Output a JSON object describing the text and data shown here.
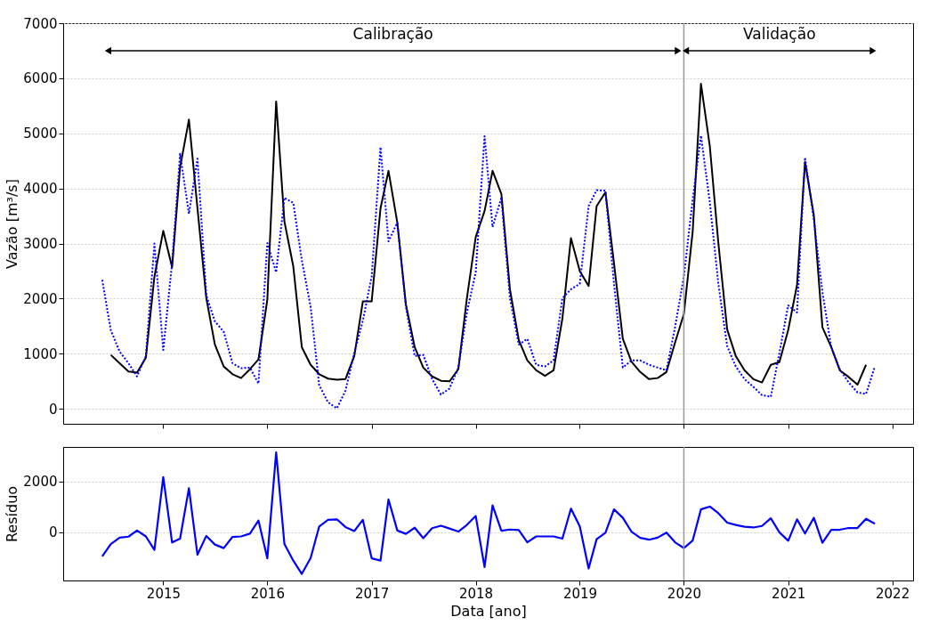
{
  "chart_data": [
    {
      "type": "line",
      "ylabel": "Vazão [m³/s]",
      "ylim": [
        -270,
        7000
      ],
      "yticks": [
        0,
        1000,
        2000,
        3000,
        4000,
        5000,
        6000,
        7000
      ],
      "xlim": [
        "2014-01-15",
        "2022-03-15"
      ],
      "xticks": [
        "2015",
        "2016",
        "2017",
        "2018",
        "2019",
        "2020",
        "2021",
        "2022"
      ],
      "tick_labels": "y",
      "grid": "y",
      "series": [
        {
          "color": "#000000",
          "line_style": "solid",
          "x": [
            "2014-07",
            "2014-08",
            "2014-09",
            "2014-10",
            "2014-11",
            "2014-12",
            "2015-01",
            "2015-02",
            "2015-03",
            "2015-04",
            "2015-05",
            "2015-06",
            "2015-07",
            "2015-08",
            "2015-09",
            "2015-10",
            "2015-11",
            "2015-12",
            "2016-01",
            "2016-02",
            "2016-03",
            "2016-04",
            "2016-05",
            "2016-06",
            "2016-07",
            "2016-08",
            "2016-09",
            "2016-10",
            "2016-11",
            "2016-12",
            "2017-01",
            "2017-02",
            "2017-03",
            "2017-04",
            "2017-05",
            "2017-06",
            "2017-07",
            "2017-08",
            "2017-09",
            "2017-10",
            "2017-11",
            "2017-12",
            "2018-01",
            "2018-02",
            "2018-03",
            "2018-04",
            "2018-05",
            "2018-06",
            "2018-07",
            "2018-08",
            "2018-09",
            "2018-10",
            "2018-11",
            "2018-12",
            "2019-01",
            "2019-02",
            "2019-03",
            "2019-04",
            "2019-05",
            "2019-06",
            "2019-07",
            "2019-08",
            "2019-09",
            "2019-10",
            "2019-11",
            "2019-12",
            "2020-01",
            "2020-02",
            "2020-03",
            "2020-04",
            "2020-05",
            "2020-06",
            "2020-07",
            "2020-08",
            "2020-09",
            "2020-10",
            "2020-11",
            "2020-12",
            "2021-01",
            "2021-02",
            "2021-03",
            "2021-04",
            "2021-05",
            "2021-06",
            "2021-07",
            "2021-08",
            "2021-09",
            "2021-10"
          ],
          "values": [
            980,
            830,
            680,
            660,
            930,
            2400,
            3230,
            2570,
            4380,
            5250,
            3640,
            2010,
            1170,
            770,
            630,
            560,
            720,
            900,
            1980,
            5580,
            3400,
            2590,
            1120,
            800,
            630,
            550,
            530,
            540,
            960,
            1950,
            1950,
            3640,
            4320,
            3380,
            1900,
            1120,
            750,
            590,
            510,
            500,
            720,
            2010,
            3120,
            3590,
            4320,
            3900,
            2170,
            1250,
            880,
            700,
            600,
            700,
            1640,
            3100,
            2500,
            2230,
            3680,
            3930,
            2640,
            1270,
            860,
            670,
            540,
            560,
            670,
            1200,
            1720,
            3220,
            5900,
            4770,
            3010,
            1440,
            960,
            700,
            540,
            480,
            800,
            850,
            1430,
            2250,
            4480,
            3510,
            1480,
            1120,
            700,
            580,
            440,
            800
          ]
        },
        {
          "color": "#0000ff",
          "line_style": "dotted",
          "x": [
            "2014-06",
            "2014-07",
            "2014-08",
            "2014-09",
            "2014-10",
            "2014-11",
            "2014-12",
            "2015-01",
            "2015-02",
            "2015-03",
            "2015-04",
            "2015-05",
            "2015-06",
            "2015-07",
            "2015-08",
            "2015-09",
            "2015-10",
            "2015-11",
            "2015-12",
            "2016-01",
            "2016-02",
            "2016-03",
            "2016-04",
            "2016-05",
            "2016-06",
            "2016-07",
            "2016-08",
            "2016-09",
            "2016-10",
            "2016-11",
            "2016-12",
            "2017-01",
            "2017-02",
            "2017-03",
            "2017-04",
            "2017-05",
            "2017-06",
            "2017-07",
            "2017-08",
            "2017-09",
            "2017-10",
            "2017-11",
            "2017-12",
            "2018-01",
            "2018-02",
            "2018-03",
            "2018-04",
            "2018-05",
            "2018-06",
            "2018-07",
            "2018-08",
            "2018-09",
            "2018-10",
            "2018-11",
            "2018-12",
            "2019-01",
            "2019-02",
            "2019-03",
            "2019-04",
            "2019-05",
            "2019-06",
            "2019-07",
            "2019-08",
            "2019-09",
            "2019-10",
            "2019-11",
            "2019-12",
            "2020-01",
            "2020-02",
            "2020-03",
            "2020-04",
            "2020-05",
            "2020-06",
            "2020-07",
            "2020-08",
            "2020-09",
            "2020-10",
            "2020-11",
            "2020-12",
            "2021-01",
            "2021-02",
            "2021-03",
            "2021-04",
            "2021-05",
            "2021-06",
            "2021-07",
            "2021-08",
            "2021-09",
            "2021-10",
            "2021-11"
          ],
          "values": [
            2340,
            1430,
            1040,
            830,
            590,
            960,
            3000,
            1070,
            2650,
            4630,
            3540,
            4540,
            2060,
            1590,
            1400,
            830,
            740,
            750,
            460,
            3010,
            2480,
            3830,
            3740,
            2700,
            1850,
            430,
            120,
            10,
            330,
            1010,
            1600,
            2400,
            4750,
            3040,
            3380,
            1850,
            960,
            980,
            540,
            260,
            370,
            750,
            1750,
            2480,
            4950,
            3300,
            3830,
            2010,
            1170,
            1270,
            800,
            770,
            880,
            2010,
            2170,
            2270,
            3680,
            3970,
            3960,
            2270,
            750,
            880,
            880,
            800,
            750,
            700,
            1480,
            2400,
            3800,
            4960,
            3750,
            2270,
            1140,
            770,
            540,
            400,
            250,
            220,
            1010,
            1880,
            1750,
            4560,
            3430,
            2120,
            1120,
            720,
            480,
            300,
            270,
            770
          ]
        }
      ],
      "ref_lines": [
        {
          "axis": "x",
          "value": "2020-01",
          "color": "#999999"
        }
      ],
      "annotations": [
        "Calibração",
        "Validação"
      ],
      "legend": false
    },
    {
      "type": "line",
      "ylabel": "Resíduo",
      "xlabel": "Data [ano]",
      "ylim": [
        -1890,
        3350
      ],
      "yticks": [
        0,
        2000
      ],
      "xlim": [
        "2014-01-15",
        "2022-03-15"
      ],
      "xticks": [
        "2015",
        "2016",
        "2017",
        "2018",
        "2019",
        "2020",
        "2021",
        "2022"
      ],
      "grid": "y",
      "legend": false,
      "series": [
        {
          "color": "#0000ff",
          "line_style": "solid",
          "x": [
            "2014-06",
            "2014-07",
            "2014-08",
            "2014-09",
            "2014-10",
            "2014-11",
            "2014-12",
            "2015-01",
            "2015-02",
            "2015-03",
            "2015-04",
            "2015-05",
            "2015-06",
            "2015-07",
            "2015-08",
            "2015-09",
            "2015-10",
            "2015-11",
            "2015-12",
            "2016-01",
            "2016-02",
            "2016-03",
            "2016-04",
            "2016-05",
            "2016-06",
            "2016-07",
            "2016-08",
            "2016-09",
            "2016-10",
            "2016-11",
            "2016-12",
            "2017-01",
            "2017-02",
            "2017-03",
            "2017-04",
            "2017-05",
            "2017-06",
            "2017-07",
            "2017-08",
            "2017-09",
            "2017-10",
            "2017-11",
            "2017-12",
            "2018-01",
            "2018-02",
            "2018-03",
            "2018-04",
            "2018-05",
            "2018-06",
            "2018-07",
            "2018-08",
            "2018-09",
            "2018-10",
            "2018-11",
            "2018-12",
            "2019-01",
            "2019-02",
            "2019-03",
            "2019-04",
            "2019-05",
            "2019-06",
            "2019-07",
            "2019-08",
            "2019-09",
            "2019-10",
            "2019-11",
            "2019-12",
            "2020-01",
            "2020-02",
            "2020-03",
            "2020-04",
            "2020-05",
            "2020-06",
            "2020-07",
            "2020-08",
            "2020-09",
            "2020-10",
            "2020-11",
            "2020-12",
            "2021-01",
            "2021-02",
            "2021-03",
            "2021-04",
            "2021-05",
            "2021-06",
            "2021-07",
            "2021-08",
            "2021-09",
            "2021-10",
            "2021-11"
          ],
          "values": [
            -940,
            -460,
            -210,
            -170,
            70,
            -160,
            -690,
            2170,
            -400,
            -250,
            1730,
            -880,
            -140,
            -480,
            -620,
            -180,
            -160,
            -50,
            460,
            -1020,
            3140,
            -460,
            -1110,
            -1630,
            -1010,
            230,
            490,
            510,
            210,
            50,
            490,
            -1020,
            -1110,
            1290,
            70,
            -60,
            180,
            -230,
            160,
            260,
            150,
            30,
            290,
            640,
            -1360,
            1060,
            60,
            110,
            90,
            -390,
            -160,
            -160,
            -160,
            -250,
            930,
            230,
            -1420,
            -270,
            -20,
            900,
            570,
            30,
            -220,
            -290,
            -210,
            -10,
            -390,
            -620,
            -320,
            900,
            1010,
            750,
            380,
            290,
            220,
            190,
            250,
            550,
            0,
            -330,
            510,
            -50,
            570,
            -410,
            100,
            100,
            170,
            170,
            530,
            340
          ]
        }
      ],
      "ref_lines": [
        {
          "axis": "x",
          "value": "2020-01",
          "color": "#999999"
        }
      ]
    }
  ]
}
